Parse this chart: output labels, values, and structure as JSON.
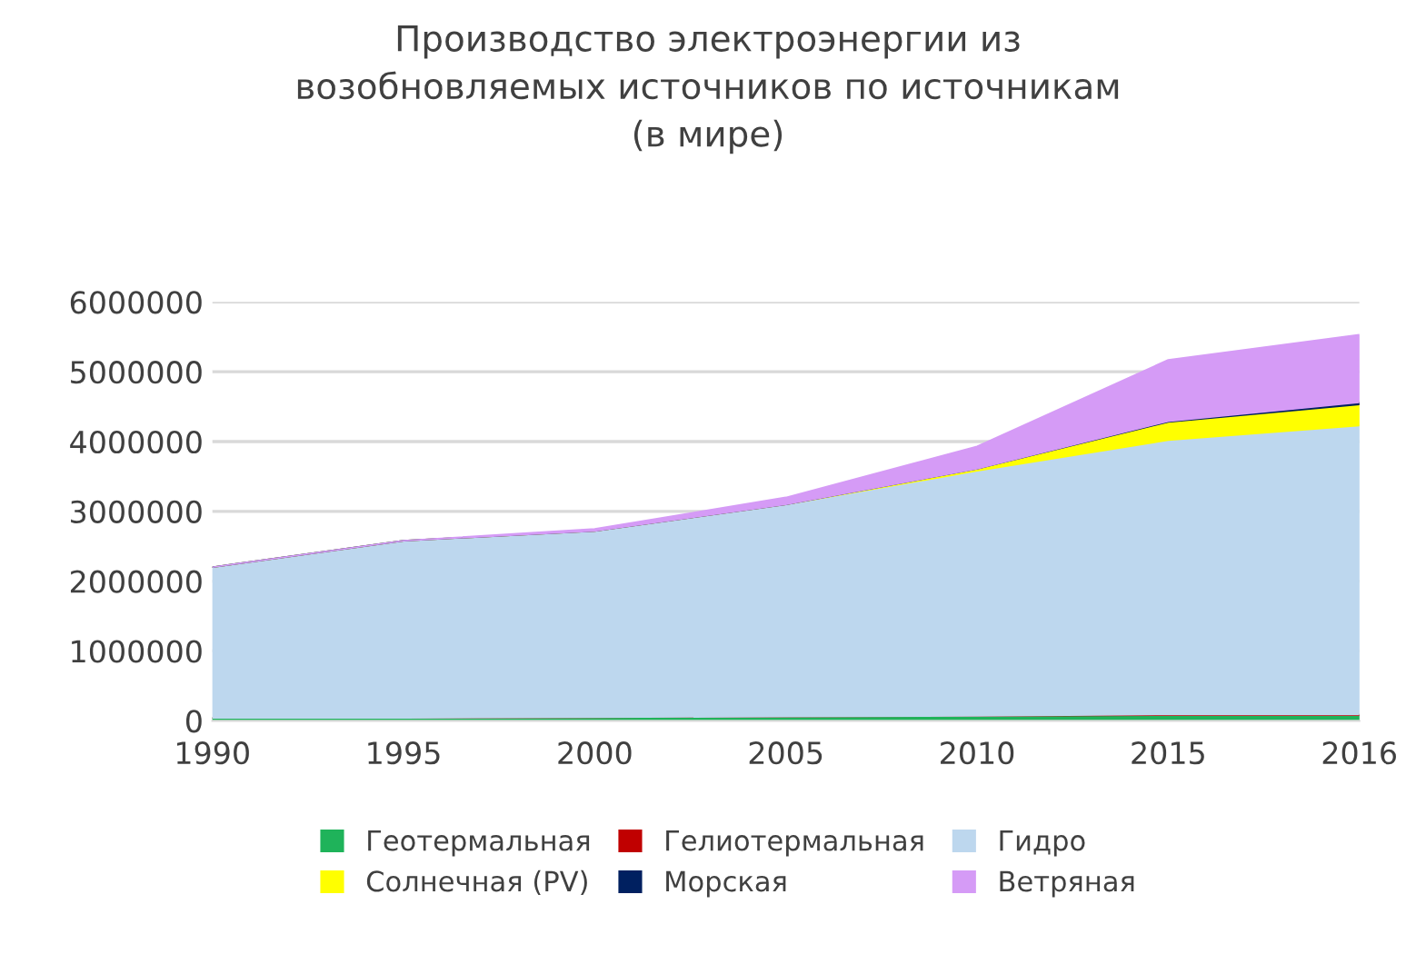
{
  "chart_data": {
    "type": "area",
    "stacked": true,
    "title": "Производство электроэнергии из\nвозобновляемых источников по источникам\n(в мире)",
    "categories": [
      "1990",
      "1995",
      "2000",
      "2005",
      "2010",
      "2015",
      "2016"
    ],
    "series": [
      {
        "name": "Геотермальная",
        "color": "#1fb35a",
        "values": [
          40000,
          40000,
          50000,
          60000,
          70000,
          80000,
          80000
        ]
      },
      {
        "name": "Гелиотермальная",
        "color": "#c00000",
        "values": [
          0,
          0,
          0,
          0,
          0,
          10000,
          10000
        ]
      },
      {
        "name": "Гидро",
        "color": "#bdd7ee",
        "values": [
          2160000,
          2540000,
          2670000,
          3040000,
          3510000,
          3930000,
          4140000
        ]
      },
      {
        "name": "Солнечная (PV)",
        "color": "#ffff00",
        "values": [
          0,
          0,
          0,
          0,
          30000,
          260000,
          300000
        ]
      },
      {
        "name": "Морская",
        "color": "#002060",
        "values": [
          0,
          0,
          0,
          0,
          0,
          10000,
          30000
        ]
      },
      {
        "name": "Ветряная",
        "color": "#d59bf6",
        "values": [
          0,
          0,
          30000,
          100000,
          320000,
          880000,
          970000
        ]
      }
    ],
    "ylim": [
      0,
      6000000
    ],
    "yticks": [
      0,
      1000000,
      2000000,
      3000000,
      4000000,
      5000000,
      6000000
    ],
    "grid": "y",
    "legend": "bottom"
  }
}
